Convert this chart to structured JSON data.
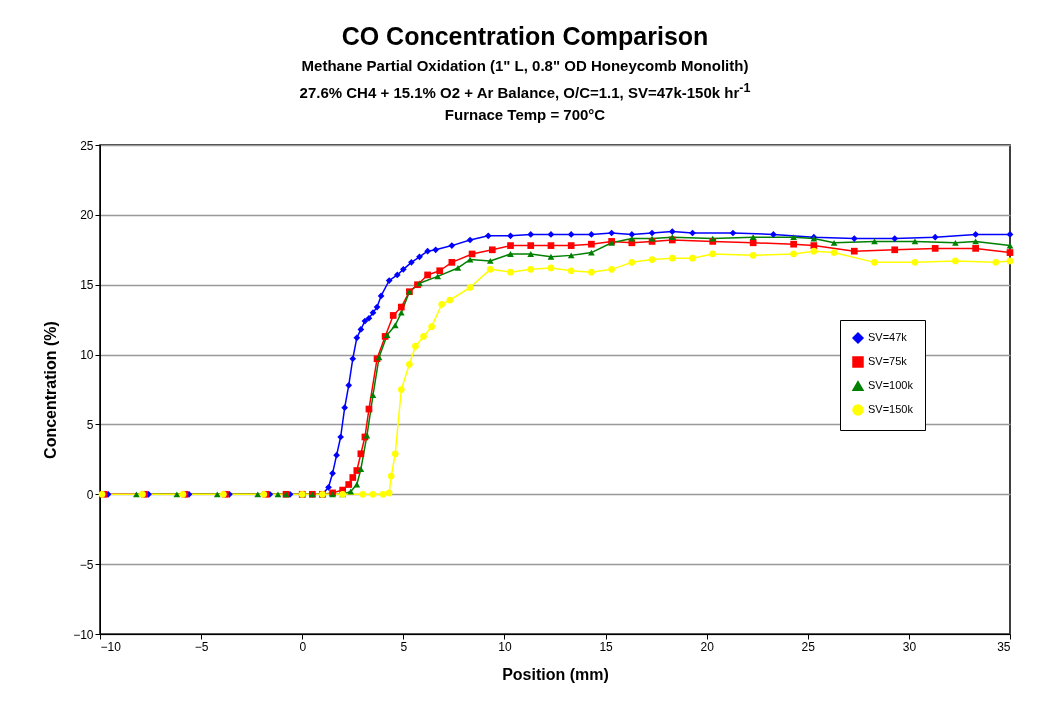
{
  "chart_data": {
    "type": "line",
    "title": "CO Concentration Comparison",
    "subtitle": [
      "Methane Partial Oxidation (1\" L, 0.8\" OD Honeycomb Monolith)",
      "27.6% CH4 + 15.1% O2 + Ar Balance, O/C=1.1, SV=47k-150k  hr$^{-1}$",
      "Furnace Temp = 700°C"
    ],
    "xlabel": "Position (mm)",
    "ylabel": "Concentration (%)",
    "xlim": [
      -10,
      35
    ],
    "ylim": [
      -10,
      25
    ],
    "xticks": [
      -10,
      -5,
      0,
      5,
      10,
      15,
      20,
      25,
      30,
      35
    ],
    "yticks": [
      -10,
      -5,
      0,
      5,
      10,
      15,
      20,
      25
    ],
    "grid": "y",
    "legend": "right",
    "line_style": "solid",
    "series": [
      {
        "name": "SV=47k",
        "color": "#0000ff",
        "marker": "diamond",
        "x": [
          -9.6,
          -7.6,
          -5.6,
          -3.6,
          -1.6,
          -0.6,
          0,
          0.5,
          1.0,
          1.3,
          1.5,
          1.7,
          1.9,
          2.1,
          2.3,
          2.5,
          2.7,
          2.9,
          3.1,
          3.3,
          3.5,
          3.7,
          3.9,
          4.3,
          4.7,
          5.0,
          5.4,
          5.8,
          6.2,
          6.6,
          7.4,
          8.3,
          9.2,
          10.3,
          11.3,
          12.3,
          13.3,
          14.3,
          15.3,
          16.3,
          17.3,
          18.3,
          19.3,
          21.3,
          23.3,
          25.3,
          27.3,
          29.3,
          31.3,
          33.3,
          35
        ],
        "values": [
          0,
          0,
          0,
          0,
          0,
          0,
          0,
          0,
          0,
          0.5,
          1.5,
          2.8,
          4.1,
          6.2,
          7.8,
          9.7,
          11.2,
          11.8,
          12.4,
          12.6,
          13.0,
          13.4,
          14.2,
          15.3,
          15.7,
          16.1,
          16.6,
          17.0,
          17.4,
          17.5,
          17.8,
          18.2,
          18.5,
          18.5,
          18.6,
          18.6,
          18.6,
          18.6,
          18.7,
          18.6,
          18.7,
          18.8,
          18.7,
          18.7,
          18.6,
          18.4,
          18.3,
          18.3,
          18.4,
          18.6,
          18.6
        ]
      },
      {
        "name": "SV=75k",
        "color": "#ff0000",
        "marker": "square",
        "x": [
          -9.8,
          -7.8,
          -5.8,
          -3.8,
          -1.8,
          -0.8,
          0,
          0.5,
          1.0,
          1.5,
          2.0,
          2.3,
          2.5,
          2.7,
          2.9,
          3.1,
          3.3,
          3.7,
          4.1,
          4.5,
          4.9,
          5.3,
          5.7,
          6.2,
          6.8,
          7.4,
          8.4,
          9.4,
          10.3,
          11.3,
          12.3,
          13.3,
          14.3,
          15.3,
          16.3,
          17.3,
          18.3,
          20.3,
          22.3,
          24.3,
          25.3,
          27.3,
          29.3,
          31.3,
          33.3,
          35
        ],
        "values": [
          0,
          0,
          0,
          0,
          0,
          0,
          0,
          0,
          0,
          0.1,
          0.3,
          0.7,
          1.2,
          1.7,
          2.9,
          4.1,
          6.1,
          9.7,
          11.3,
          12.8,
          13.4,
          14.5,
          15.0,
          15.7,
          16.0,
          16.6,
          17.2,
          17.5,
          17.8,
          17.8,
          17.8,
          17.8,
          17.9,
          18.1,
          18.0,
          18.1,
          18.2,
          18.1,
          18.0,
          17.9,
          17.8,
          17.4,
          17.5,
          17.6,
          17.6,
          17.3
        ]
      },
      {
        "name": "SV=100k",
        "color": "#008000",
        "marker": "triangle",
        "x": [
          -8.2,
          -6.2,
          -4.2,
          -2.2,
          -1.2,
          -0.8,
          0,
          0.5,
          1.0,
          1.5,
          2.0,
          2.4,
          2.7,
          2.9,
          3.2,
          3.5,
          3.8,
          4.2,
          4.6,
          4.9,
          5.3,
          5.8,
          6.7,
          7.7,
          8.3,
          9.3,
          10.3,
          11.3,
          12.3,
          13.3,
          14.3,
          15.3,
          16.3,
          17.3,
          18.3,
          20.3,
          22.3,
          24.3,
          25.3,
          26.3,
          28.3,
          30.3,
          32.3,
          33.3,
          35
        ],
        "values": [
          0,
          0,
          0,
          0,
          0,
          0,
          0,
          0,
          0,
          0,
          0,
          0.2,
          0.7,
          1.8,
          4.2,
          7.1,
          9.8,
          11.4,
          12.1,
          13.0,
          14.5,
          15.1,
          15.6,
          16.2,
          16.8,
          16.7,
          17.2,
          17.2,
          17.0,
          17.1,
          17.3,
          18.0,
          18.3,
          18.3,
          18.4,
          18.3,
          18.4,
          18.4,
          18.3,
          18.0,
          18.1,
          18.1,
          18.0,
          18.1,
          17.8
        ]
      },
      {
        "name": "SV=150k",
        "color": "#ffff00",
        "marker": "circle",
        "x": [
          -9.9,
          -7.9,
          -5.9,
          -3.9,
          -1.9,
          0,
          1,
          2,
          3,
          3.5,
          4,
          4.3,
          4.4,
          4.6,
          4.9,
          5.3,
          5.6,
          6.0,
          6.4,
          6.9,
          7.3,
          8.3,
          9.3,
          10.3,
          11.3,
          12.3,
          13.3,
          14.3,
          15.3,
          16.3,
          17.3,
          18.3,
          19.3,
          20.3,
          22.3,
          24.3,
          25.3,
          26.3,
          28.3,
          30.3,
          32.3,
          34.3,
          35
        ],
        "values": [
          0,
          0,
          0,
          0,
          0,
          0,
          0,
          0,
          0,
          0,
          0,
          0.1,
          1.3,
          2.9,
          7.5,
          9.3,
          10.6,
          11.3,
          12.0,
          13.6,
          13.9,
          14.8,
          16.1,
          15.9,
          16.1,
          16.2,
          16.0,
          15.9,
          16.1,
          16.6,
          16.8,
          16.9,
          16.9,
          17.2,
          17.1,
          17.2,
          17.4,
          17.3,
          16.6,
          16.6,
          16.7,
          16.6,
          16.7
        ]
      }
    ]
  }
}
